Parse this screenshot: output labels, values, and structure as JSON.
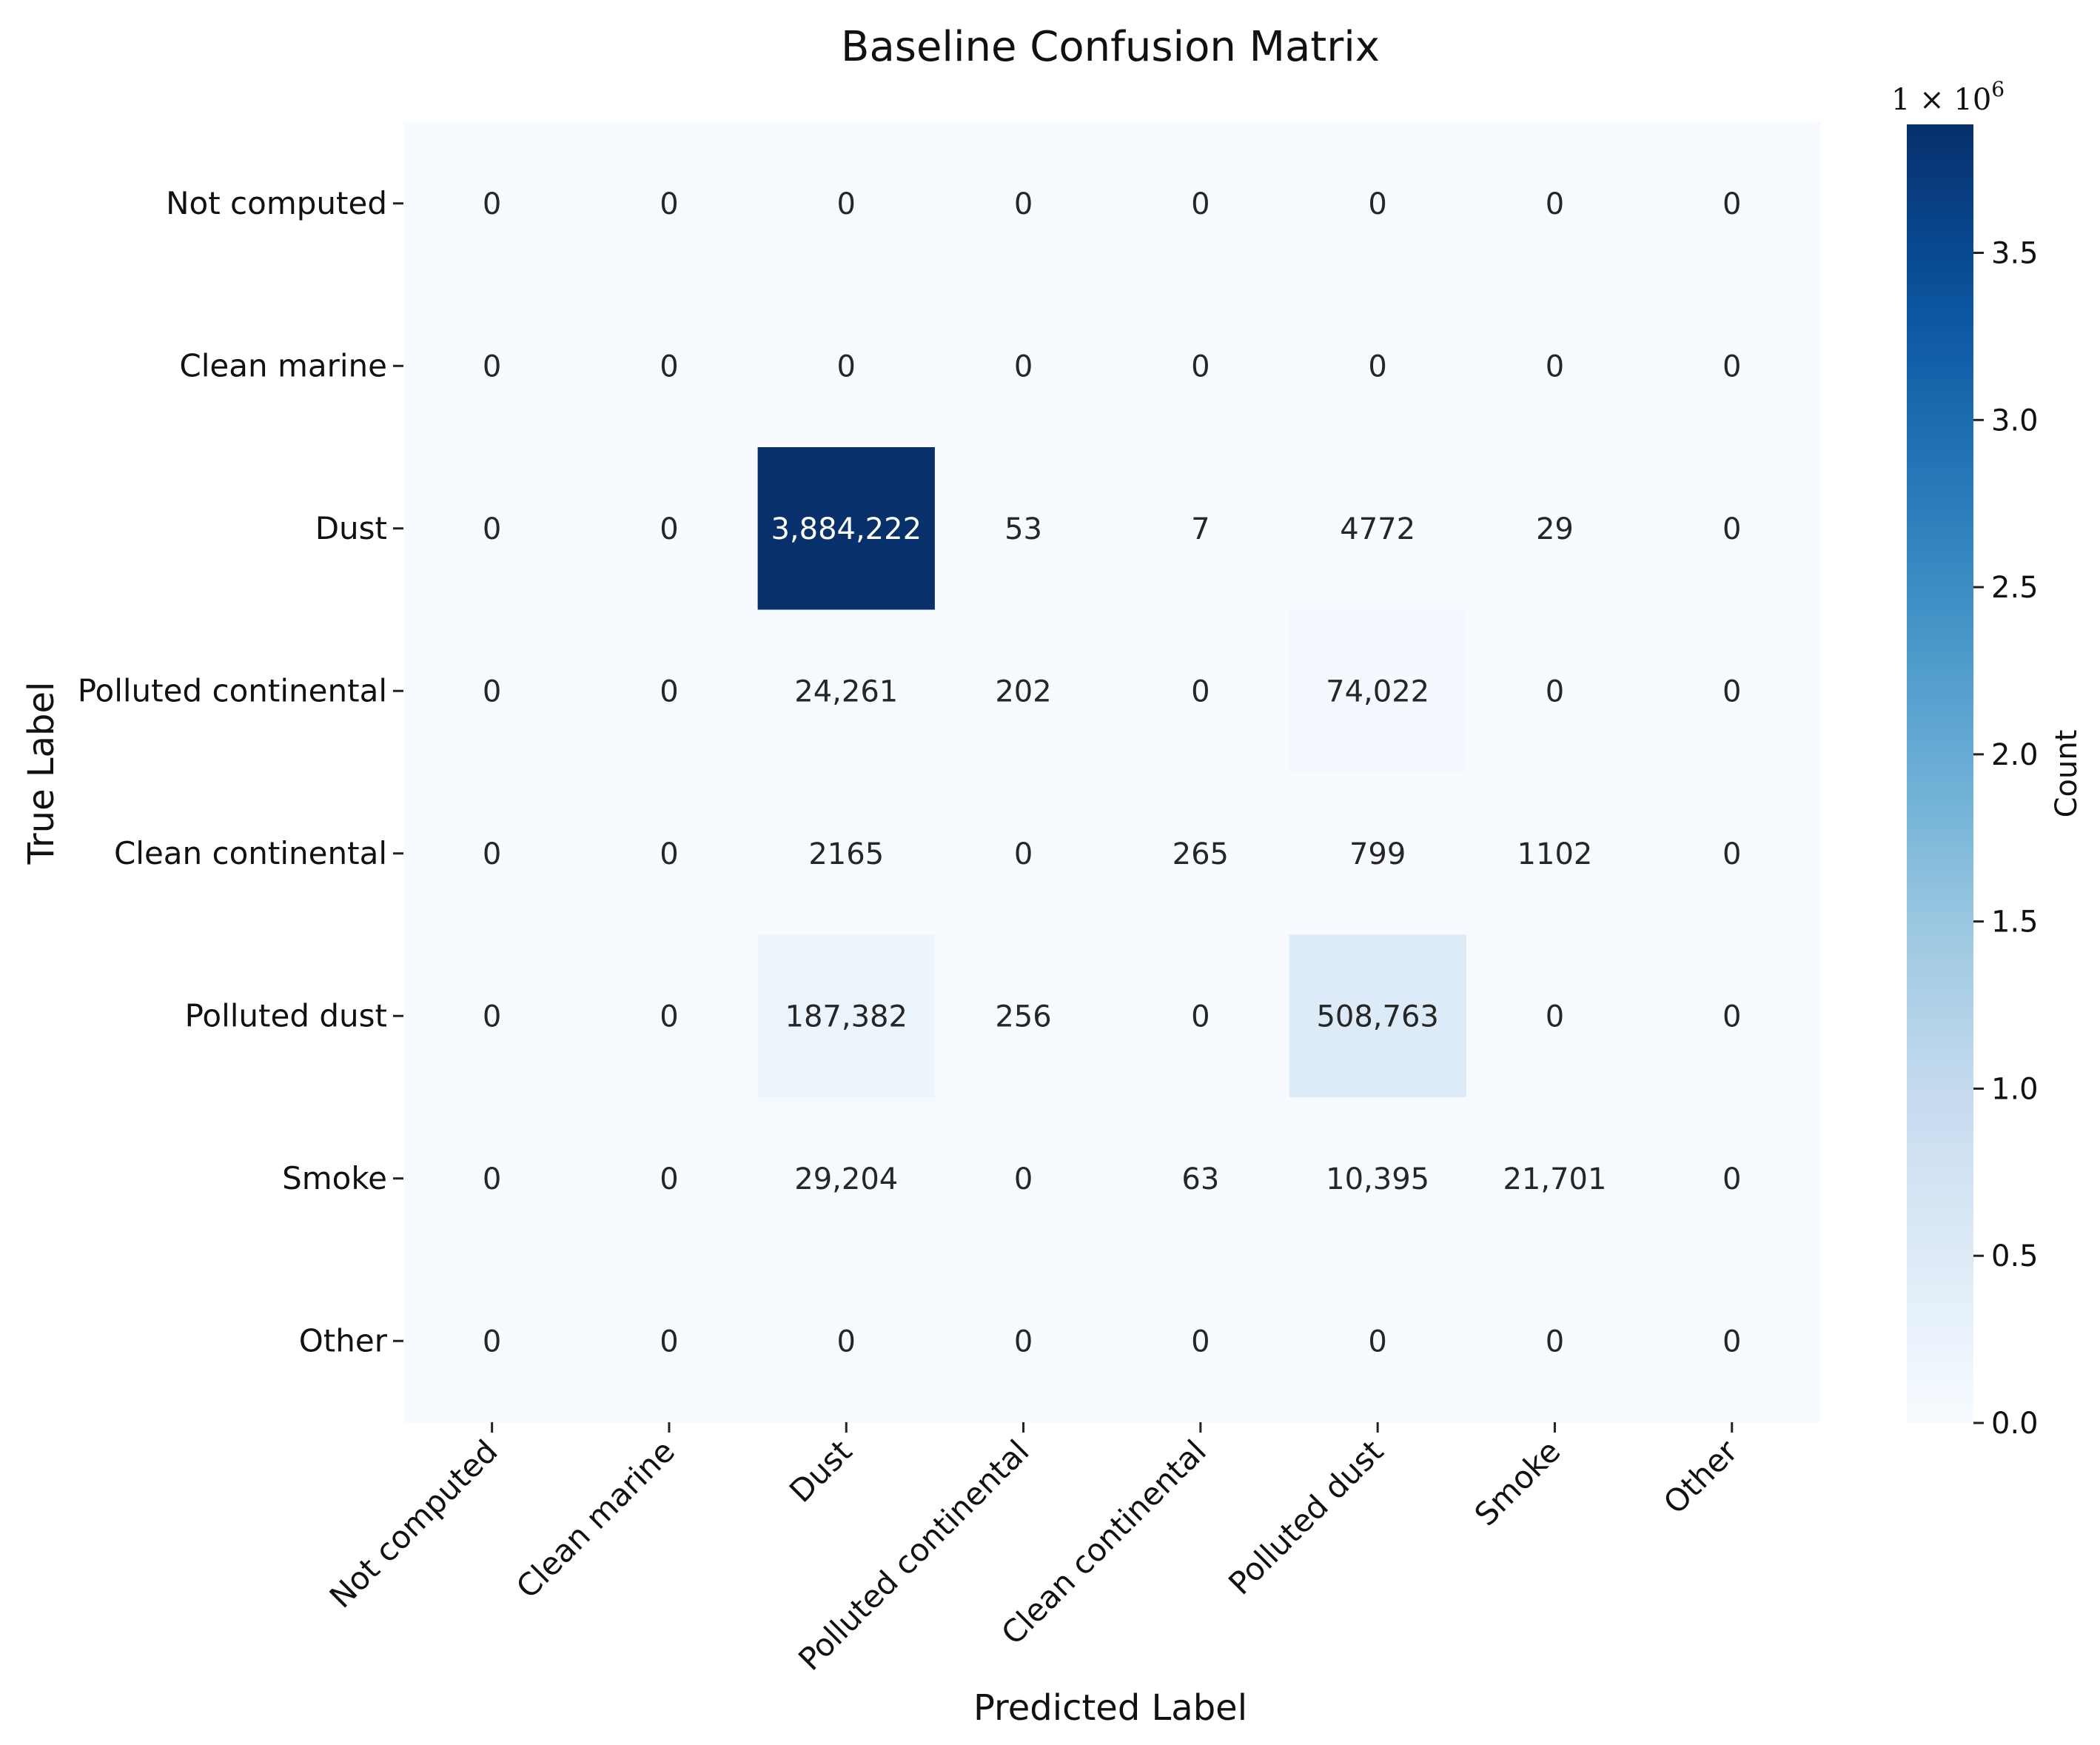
{
  "chart_data": {
    "type": "heatmap",
    "title": "Baseline Confusion Matrix",
    "xlabel": "Predicted Label",
    "ylabel": "True Label",
    "x_categories": [
      "Not computed",
      "Clean marine",
      "Dust",
      "Polluted continental",
      "Clean continental",
      "Polluted dust",
      "Smoke",
      "Other"
    ],
    "y_categories": [
      "Not computed",
      "Clean marine",
      "Dust",
      "Polluted continental",
      "Clean continental",
      "Polluted dust",
      "Smoke",
      "Other"
    ],
    "values": [
      [
        0,
        0,
        0,
        0,
        0,
        0,
        0,
        0
      ],
      [
        0,
        0,
        0,
        0,
        0,
        0,
        0,
        0
      ],
      [
        0,
        0,
        3884222,
        53,
        7,
        4772,
        29,
        0
      ],
      [
        0,
        0,
        24261,
        202,
        0,
        74022,
        0,
        0
      ],
      [
        0,
        0,
        2165,
        0,
        265,
        799,
        1102,
        0
      ],
      [
        0,
        0,
        187382,
        256,
        0,
        508763,
        0,
        0
      ],
      [
        0,
        0,
        29204,
        0,
        63,
        10395,
        21701,
        0
      ],
      [
        0,
        0,
        0,
        0,
        0,
        0,
        0,
        0
      ]
    ],
    "cell_labels": [
      [
        "0",
        "0",
        "0",
        "0",
        "0",
        "0",
        "0",
        "0"
      ],
      [
        "0",
        "0",
        "0",
        "0",
        "0",
        "0",
        "0",
        "0"
      ],
      [
        "0",
        "0",
        "3,884,222",
        "53",
        "7",
        "4772",
        "29",
        "0"
      ],
      [
        "0",
        "0",
        "24,261",
        "202",
        "0",
        "74,022",
        "0",
        "0"
      ],
      [
        "0",
        "0",
        "2165",
        "0",
        "265",
        "799",
        "1102",
        "0"
      ],
      [
        "0",
        "0",
        "187,382",
        "256",
        "0",
        "508,763",
        "0",
        "0"
      ],
      [
        "0",
        "0",
        "29,204",
        "0",
        "63",
        "10,395",
        "21,701",
        "0"
      ],
      [
        "0",
        "0",
        "0",
        "0",
        "0",
        "0",
        "0",
        "0"
      ]
    ],
    "colormap": "Blues",
    "colormap_stops": [
      "#f7fbff",
      "#deebf7",
      "#c6dbef",
      "#9ecae1",
      "#6baed6",
      "#4292c6",
      "#2171b5",
      "#08519c",
      "#08306b"
    ],
    "colorbar": {
      "label": "Count",
      "range": [
        0,
        3884222
      ],
      "ticks": [
        0.0,
        0.5,
        1.0,
        1.5,
        2.0,
        2.5,
        3.0,
        3.5
      ],
      "tick_labels": [
        "0.0",
        "0.5",
        "1.0",
        "1.5",
        "2.0",
        "2.5",
        "3.0",
        "3.5"
      ],
      "scale_prefix": "1 × 10",
      "scale_exponent": "6"
    },
    "grid": false,
    "legend": "none"
  }
}
